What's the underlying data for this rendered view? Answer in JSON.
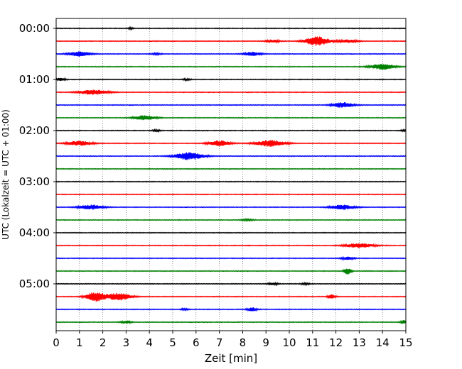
{
  "chart_data": {
    "type": "line",
    "title": "",
    "xlabel": "Zeit  [min]",
    "ylabel": "UTC (Lokalzeit = UTC + 01:00)",
    "xlim": [
      0,
      15
    ],
    "x_ticks": [
      0,
      1,
      2,
      3,
      4,
      5,
      6,
      7,
      8,
      9,
      10,
      11,
      12,
      13,
      14,
      15
    ],
    "x_tick_labels": [
      "0",
      "1",
      "2",
      "3",
      "4",
      "5",
      "6",
      "7",
      "8",
      "9",
      "10",
      "11",
      "12",
      "13",
      "14",
      "15"
    ],
    "y_tick_labels": [
      "00:00",
      "01:00",
      "02:00",
      "03:00",
      "04:00",
      "05:00"
    ],
    "y_tick_rows": [
      0,
      4,
      8,
      12,
      16,
      20
    ],
    "grid": "vertical dotted at each minute",
    "trace_colors": [
      "#000000",
      "#ff0000",
      "#0000ff",
      "#008000"
    ],
    "trace_interval_min": 15,
    "traces": [
      {
        "label": "00:00",
        "events": [
          [
            3.2,
            0.15,
            0.12
          ]
        ]
      },
      {
        "label": "00:15",
        "events": [
          [
            9.3,
            0.25,
            0.3
          ],
          [
            11.2,
            1.0,
            0.5
          ],
          [
            12.5,
            0.3,
            0.4
          ]
        ]
      },
      {
        "label": "00:30",
        "events": [
          [
            1.0,
            0.5,
            0.45
          ],
          [
            4.3,
            0.15,
            0.2
          ],
          [
            8.4,
            0.4,
            0.35
          ]
        ]
      },
      {
        "label": "00:45",
        "events": [
          [
            14.0,
            0.6,
            0.5
          ]
        ]
      },
      {
        "label": "01:00",
        "events": [
          [
            0.2,
            0.3,
            0.2
          ],
          [
            5.6,
            0.2,
            0.15
          ]
        ]
      },
      {
        "label": "01:15",
        "events": [
          [
            1.6,
            0.5,
            0.6
          ]
        ]
      },
      {
        "label": "01:30",
        "events": [
          [
            12.3,
            0.55,
            0.45
          ]
        ]
      },
      {
        "label": "01:45",
        "events": [
          [
            3.8,
            0.5,
            0.45
          ]
        ]
      },
      {
        "label": "02:00",
        "events": [
          [
            4.3,
            0.2,
            0.15
          ],
          [
            15.0,
            0.2,
            0.2
          ]
        ]
      },
      {
        "label": "02:15",
        "events": [
          [
            1.0,
            0.5,
            0.5
          ],
          [
            7.0,
            0.6,
            0.45
          ],
          [
            9.2,
            0.7,
            0.6
          ]
        ]
      },
      {
        "label": "02:30",
        "events": [
          [
            5.7,
            0.8,
            0.6
          ]
        ]
      },
      {
        "label": "02:45",
        "events": []
      },
      {
        "label": "03:00",
        "events": []
      },
      {
        "label": "03:15",
        "events": []
      },
      {
        "label": "03:30",
        "events": [
          [
            1.5,
            0.5,
            0.5
          ],
          [
            12.3,
            0.5,
            0.5
          ]
        ]
      },
      {
        "label": "03:45",
        "events": [
          [
            8.2,
            0.15,
            0.25
          ]
        ]
      },
      {
        "label": "04:00",
        "events": []
      },
      {
        "label": "04:15",
        "events": [
          [
            13.0,
            0.45,
            0.6
          ]
        ]
      },
      {
        "label": "04:30",
        "events": [
          [
            12.5,
            0.3,
            0.25
          ]
        ]
      },
      {
        "label": "04:45",
        "events": [
          [
            12.5,
            0.7,
            0.15
          ]
        ]
      },
      {
        "label": "05:00",
        "events": [
          [
            9.3,
            0.25,
            0.2
          ],
          [
            10.7,
            0.15,
            0.2
          ]
        ]
      },
      {
        "label": "05:15",
        "events": [
          [
            1.7,
            1.0,
            0.4
          ],
          [
            2.7,
            0.8,
            0.5
          ],
          [
            11.8,
            0.5,
            0.15
          ]
        ]
      },
      {
        "label": "05:30",
        "events": [
          [
            5.5,
            0.2,
            0.15
          ],
          [
            8.4,
            0.4,
            0.2
          ]
        ]
      },
      {
        "label": "05:45",
        "events": [
          [
            3.0,
            0.3,
            0.2
          ],
          [
            14.9,
            0.4,
            0.12
          ]
        ]
      }
    ]
  }
}
